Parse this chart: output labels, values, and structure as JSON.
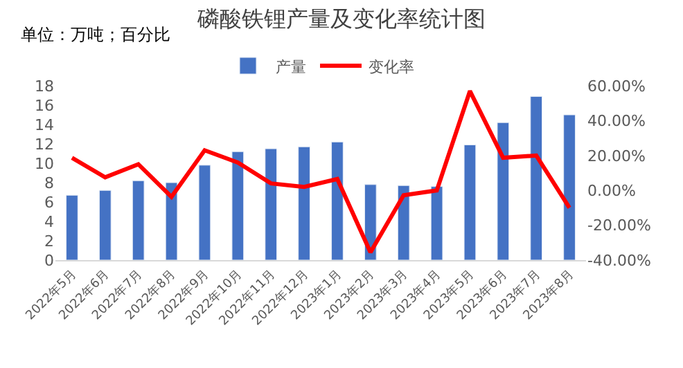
{
  "chart_data": {
    "type": "bar",
    "title": "磷酸铁锂产量及变化率统计图",
    "annotations": [
      "单位：万吨；百分比"
    ],
    "categories": [
      "2022年5月",
      "2022年6月",
      "2022年7月",
      "2022年8月",
      "2022年9月",
      "2022年10月",
      "2022年11月",
      "2022年12月",
      "2023年1月",
      "2023年2月",
      "2023年3月",
      "2023年4月",
      "2023年5月",
      "2023年6月",
      "2023年7月",
      "2023年8月"
    ],
    "series": [
      {
        "name": "产量",
        "color": "#4472c4",
        "values": [
          6.7,
          7.2,
          8.2,
          8.0,
          9.8,
          11.2,
          11.5,
          11.7,
          12.2,
          7.8,
          7.7,
          7.6,
          11.9,
          14.2,
          16.9,
          15.0
        ]
      },
      {
        "name": "变化率",
        "color": "#ff0000",
        "type": "line",
        "axis": "y2",
        "values": [
          18.7,
          7.5,
          15,
          -3.7,
          23,
          16,
          4,
          2,
          6.5,
          -35.5,
          -2.8,
          0,
          57,
          18.7,
          20,
          -10
        ]
      }
    ],
    "ylim": [
      0,
      18
    ],
    "yticks": [
      0,
      2,
      4,
      6,
      8,
      10,
      12,
      14,
      16,
      18
    ],
    "y2lim": [
      -40,
      60
    ],
    "y2ticks": [
      {
        "value": -40,
        "label": "-40.00%"
      },
      {
        "value": -20,
        "label": "-20.00%"
      },
      {
        "value": 0,
        "label": "0.00%"
      },
      {
        "value": 20,
        "label": "20.00%"
      },
      {
        "value": 40,
        "label": "40.00%"
      },
      {
        "value": 60,
        "label": "60.00%"
      }
    ],
    "legend": "top",
    "marker": "none",
    "line_style": "solid"
  }
}
